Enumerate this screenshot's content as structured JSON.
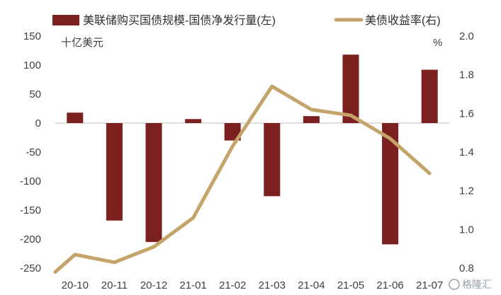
{
  "chart_data": {
    "type": "bar",
    "categories": [
      "20-10",
      "20-11",
      "20-12",
      "21-01",
      "21-02",
      "21-03",
      "21-04",
      "21-05",
      "21-06",
      "21-07"
    ],
    "series": [
      {
        "name": "美联储购买国债规模-国债净发行量(左)",
        "type": "bar",
        "axis": "left",
        "color": "#7b1f1f",
        "values": [
          18,
          -168,
          -205,
          7,
          -30,
          -126,
          12,
          118,
          -209,
          92
        ]
      },
      {
        "name": "美债收益率(右)",
        "type": "line",
        "axis": "right",
        "color": "#c4a46a",
        "values": [
          0.87,
          0.83,
          0.91,
          1.06,
          1.43,
          1.74,
          1.62,
          1.59,
          1.47,
          1.29
        ]
      }
    ],
    "line_start_value": 0.78,
    "left_axis": {
      "unit_label": "十亿美元",
      "ylim": [
        -250,
        150
      ],
      "ticks": [
        150,
        100,
        50,
        0,
        -50,
        -100,
        -150,
        -200,
        -250
      ]
    },
    "right_axis": {
      "unit_label": "%",
      "ylim": [
        0.8,
        2.0
      ],
      "ticks": [
        "2.0",
        "1.8",
        "1.6",
        "1.4",
        "1.2",
        "1.0",
        "0.8"
      ]
    },
    "legend_position": "top",
    "grid": false
  },
  "watermark": {
    "text": "格隆汇"
  }
}
